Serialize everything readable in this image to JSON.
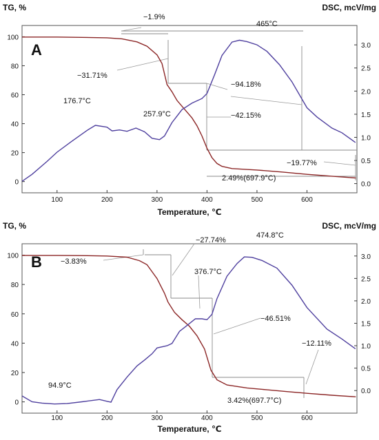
{
  "chart_data": [
    {
      "panel": "A",
      "type": "line",
      "xlabel": "Temperature, ℃",
      "ylabel_left": "TG, %",
      "ylabel_right": "DSC, mcV/mg",
      "xlim": [
        30,
        700
      ],
      "ylim_left": [
        -3,
        104
      ],
      "ylim_right": [
        -0.05,
        3.3
      ],
      "x_ticks": [
        100,
        200,
        300,
        400,
        500,
        600
      ],
      "y_ticks_left": [
        0,
        20,
        40,
        60,
        80,
        100
      ],
      "y_ticks_right": [
        0.0,
        0.5,
        1.0,
        1.5,
        2.0,
        2.5,
        3.0
      ],
      "grid": false,
      "series": [
        {
          "axis": "left",
          "color": "#8b2525",
          "x": [
            30,
            100,
            150,
            200,
            230,
            260,
            280,
            300,
            310,
            320,
            330,
            340,
            350,
            360,
            370,
            380,
            390,
            400,
            410,
            420,
            430,
            450,
            500,
            550,
            600,
            650,
            697.9
          ],
          "y": [
            99.8,
            99.8,
            99.6,
            99.3,
            98.6,
            96.5,
            93.5,
            87.5,
            81.5,
            67,
            62,
            56,
            52,
            48,
            44,
            38.5,
            31.5,
            23,
            16.5,
            12.5,
            10.5,
            9,
            8,
            6.6,
            5,
            3.7,
            2.49
          ]
        },
        {
          "axis": "right",
          "color": "#4e3f9e",
          "x": [
            30,
            50,
            80,
            100,
            130,
            160,
            176.7,
            200,
            210,
            225,
            240,
            257.9,
            275,
            290,
            305,
            315,
            330,
            350,
            370,
            390,
            400,
            415,
            430,
            450,
            465,
            480,
            500,
            520,
            545,
            570,
            600,
            620,
            650,
            670,
            697
          ],
          "y": [
            0.05,
            0.2,
            0.48,
            0.68,
            0.92,
            1.15,
            1.26,
            1.22,
            1.14,
            1.16,
            1.13,
            1.2,
            1.12,
            0.98,
            0.95,
            1.03,
            1.32,
            1.6,
            1.74,
            1.84,
            1.95,
            2.35,
            2.77,
            3.06,
            3.1,
            3.07,
            3.0,
            2.86,
            2.57,
            2.2,
            1.64,
            1.44,
            1.2,
            1.1,
            0.89
          ]
        }
      ],
      "annotations": [
        "−1.9%",
        "465°C",
        "−31.71%",
        "−94.18%",
        "176.7°C",
        "257.9°C",
        "−42.15%",
        "−19.77%",
        "2.49%(697.9°C)"
      ]
    },
    {
      "panel": "B",
      "type": "line",
      "xlabel": "Temperature, ℃",
      "ylabel_left": "TG, %",
      "ylabel_right": "DSC, mcV/mg",
      "xlim": [
        30,
        700
      ],
      "ylim_left": [
        -3,
        104
      ],
      "ylim_right": [
        -0.35,
        3.15
      ],
      "x_ticks": [
        100,
        200,
        300,
        400,
        500,
        600
      ],
      "y_ticks_left": [
        0,
        20,
        40,
        60,
        80,
        100
      ],
      "y_ticks_right": [
        0.0,
        0.5,
        1.0,
        1.5,
        2.0,
        2.5,
        3.0
      ],
      "grid": false,
      "series": [
        {
          "axis": "left",
          "color": "#8b2525",
          "x": [
            30,
            100,
            150,
            200,
            240,
            265,
            280,
            300,
            315,
            322,
            335,
            350,
            365,
            380,
            395,
            408,
            420,
            440,
            480,
            520,
            560,
            600,
            650,
            697.7
          ],
          "y": [
            99.8,
            99.8,
            99.7,
            99.4,
            98.6,
            96.2,
            93.5,
            84,
            74,
            68,
            61,
            56,
            51.5,
            45,
            36,
            21.5,
            15,
            11.5,
            9.5,
            8.2,
            7,
            5.8,
            4.5,
            3.42
          ]
        },
        {
          "axis": "right",
          "color": "#4e3f9e",
          "x": [
            30,
            50,
            70,
            94.9,
            120,
            150,
            185,
            200,
            208,
            220,
            240,
            260,
            275,
            290,
            300,
            320,
            330,
            345,
            360,
            376.7,
            390,
            400,
            410,
            420,
            440,
            460,
            474.8,
            490,
            510,
            540,
            570,
            600,
            640,
            670,
            697
          ],
          "y": [
            -0.12,
            -0.25,
            -0.28,
            -0.3,
            -0.29,
            -0.25,
            -0.2,
            -0.24,
            -0.26,
            0.02,
            0.3,
            0.55,
            0.68,
            0.82,
            0.95,
            1.0,
            1.05,
            1.32,
            1.45,
            1.6,
            1.6,
            1.58,
            1.7,
            2.05,
            2.55,
            2.83,
            2.98,
            2.97,
            2.9,
            2.73,
            2.35,
            1.85,
            1.37,
            1.15,
            0.93
          ]
        }
      ],
      "annotations": [
        "−3.83%",
        "−27.74%",
        "474.8°C",
        "376.7°C",
        "−46.51%",
        "−12.11%",
        "94.9°C",
        "3.42%(697.7°C)"
      ]
    }
  ]
}
